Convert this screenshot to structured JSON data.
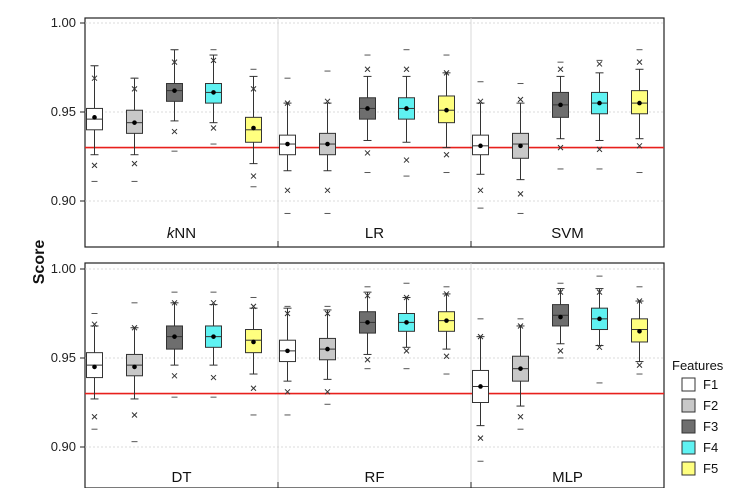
{
  "chart_data": {
    "type": "box",
    "ylabel": "Score",
    "ylim": [
      0.89,
      1.0
    ],
    "yticks": [
      "1.00",
      "0.95",
      "0.90"
    ],
    "reference_line": 0.93,
    "reference_color": "#e8201c",
    "features": [
      {
        "name": "F1",
        "color": "#ffffff"
      },
      {
        "name": "F2",
        "color": "#c8c8c8"
      },
      {
        "name": "F3",
        "color": "#6e6e6e"
      },
      {
        "name": "F4",
        "color": "#5ff2f2"
      },
      {
        "name": "F5",
        "color": "#ffff7f"
      }
    ],
    "legend": {
      "title": "Features",
      "position": "right"
    },
    "grid": true,
    "panels": [
      {
        "models": [
          {
            "name": "kNN",
            "label_italic_prefix": "k",
            "label_rest": "NN",
            "boxes": [
              {
                "feature": "F1",
                "q1": 0.94,
                "median": 0.946,
                "q3": 0.952,
                "mean": 0.947,
                "whisker_low": 0.926,
                "whisker_high": 0.976,
                "outliers": [
                  0.969,
                  0.92
                ],
                "extremes": [
                  0.976,
                  0.911
                ]
              },
              {
                "feature": "F2",
                "q1": 0.938,
                "median": 0.944,
                "q3": 0.951,
                "mean": 0.944,
                "whisker_low": 0.926,
                "whisker_high": 0.969,
                "outliers": [
                  0.963,
                  0.921
                ],
                "extremes": [
                  0.969,
                  0.911
                ]
              },
              {
                "feature": "F3",
                "q1": 0.956,
                "median": 0.962,
                "q3": 0.966,
                "mean": 0.962,
                "whisker_low": 0.945,
                "whisker_high": 0.985,
                "outliers": [
                  0.978,
                  0.939
                ],
                "extremes": [
                  0.985,
                  0.928
                ]
              },
              {
                "feature": "F4",
                "q1": 0.955,
                "median": 0.961,
                "q3": 0.966,
                "mean": 0.961,
                "whisker_low": 0.944,
                "whisker_high": 0.982,
                "outliers": [
                  0.979,
                  0.941
                ],
                "extremes": [
                  0.985,
                  0.932
                ]
              },
              {
                "feature": "F5",
                "q1": 0.933,
                "median": 0.94,
                "q3": 0.947,
                "mean": 0.941,
                "whisker_low": 0.921,
                "whisker_high": 0.97,
                "outliers": [
                  0.963,
                  0.914
                ],
                "extremes": [
                  0.974,
                  0.908
                ]
              }
            ]
          },
          {
            "name": "LR",
            "boxes": [
              {
                "feature": "F1",
                "q1": 0.926,
                "median": 0.932,
                "q3": 0.937,
                "mean": 0.932,
                "whisker_low": 0.917,
                "whisker_high": 0.955,
                "outliers": [
                  0.955,
                  0.906
                ],
                "extremes": [
                  0.969,
                  0.893
                ]
              },
              {
                "feature": "F2",
                "q1": 0.926,
                "median": 0.932,
                "q3": 0.938,
                "mean": 0.932,
                "whisker_low": 0.917,
                "whisker_high": 0.955,
                "outliers": [
                  0.956,
                  0.906
                ],
                "extremes": [
                  0.973,
                  0.893
                ]
              },
              {
                "feature": "F3",
                "q1": 0.946,
                "median": 0.952,
                "q3": 0.958,
                "mean": 0.952,
                "whisker_low": 0.934,
                "whisker_high": 0.97,
                "outliers": [
                  0.974,
                  0.927
                ],
                "extremes": [
                  0.982,
                  0.916
                ]
              },
              {
                "feature": "F4",
                "q1": 0.946,
                "median": 0.952,
                "q3": 0.958,
                "mean": 0.952,
                "whisker_low": 0.933,
                "whisker_high": 0.97,
                "outliers": [
                  0.974,
                  0.923
                ],
                "extremes": [
                  0.985,
                  0.914
                ]
              },
              {
                "feature": "F5",
                "q1": 0.944,
                "median": 0.951,
                "q3": 0.959,
                "mean": 0.951,
                "whisker_low": 0.93,
                "whisker_high": 0.972,
                "outliers": [
                  0.972,
                  0.926
                ],
                "extremes": [
                  0.982,
                  0.916
                ]
              }
            ]
          },
          {
            "name": "SVM",
            "boxes": [
              {
                "feature": "F1",
                "q1": 0.926,
                "median": 0.931,
                "q3": 0.937,
                "mean": 0.931,
                "whisker_low": 0.915,
                "whisker_high": 0.955,
                "outliers": [
                  0.956,
                  0.906
                ],
                "extremes": [
                  0.967,
                  0.896
                ]
              },
              {
                "feature": "F2",
                "q1": 0.924,
                "median": 0.932,
                "q3": 0.938,
                "mean": 0.931,
                "whisker_low": 0.912,
                "whisker_high": 0.955,
                "outliers": [
                  0.957,
                  0.904
                ],
                "extremes": [
                  0.966,
                  0.893
                ]
              },
              {
                "feature": "F3",
                "q1": 0.947,
                "median": 0.954,
                "q3": 0.961,
                "mean": 0.954,
                "whisker_low": 0.935,
                "whisker_high": 0.97,
                "outliers": [
                  0.974,
                  0.93
                ],
                "extremes": [
                  0.978,
                  0.918
                ]
              },
              {
                "feature": "F4",
                "q1": 0.949,
                "median": 0.955,
                "q3": 0.961,
                "mean": 0.955,
                "whisker_low": 0.934,
                "whisker_high": 0.972,
                "outliers": [
                  0.977,
                  0.929
                ],
                "extremes": [
                  0.979,
                  0.918
                ]
              },
              {
                "feature": "F5",
                "q1": 0.949,
                "median": 0.955,
                "q3": 0.962,
                "mean": 0.955,
                "whisker_low": 0.935,
                "whisker_high": 0.974,
                "outliers": [
                  0.978,
                  0.931
                ],
                "extremes": [
                  0.985,
                  0.916
                ]
              }
            ]
          }
        ]
      },
      {
        "models": [
          {
            "name": "DT",
            "boxes": [
              {
                "feature": "F1",
                "q1": 0.939,
                "median": 0.946,
                "q3": 0.953,
                "mean": 0.945,
                "whisker_low": 0.927,
                "whisker_high": 0.968,
                "outliers": [
                  0.969,
                  0.917
                ],
                "extremes": [
                  0.975,
                  0.91
                ]
              },
              {
                "feature": "F2",
                "q1": 0.94,
                "median": 0.946,
                "q3": 0.952,
                "mean": 0.945,
                "whisker_low": 0.927,
                "whisker_high": 0.967,
                "outliers": [
                  0.967,
                  0.918
                ],
                "extremes": [
                  0.981,
                  0.903
                ]
              },
              {
                "feature": "F3",
                "q1": 0.955,
                "median": 0.962,
                "q3": 0.968,
                "mean": 0.962,
                "whisker_low": 0.946,
                "whisker_high": 0.981,
                "outliers": [
                  0.981,
                  0.94
                ],
                "extremes": [
                  0.987,
                  0.928
                ]
              },
              {
                "feature": "F4",
                "q1": 0.956,
                "median": 0.962,
                "q3": 0.968,
                "mean": 0.962,
                "whisker_low": 0.946,
                "whisker_high": 0.98,
                "outliers": [
                  0.981,
                  0.939
                ],
                "extremes": [
                  0.987,
                  0.928
                ]
              },
              {
                "feature": "F5",
                "q1": 0.953,
                "median": 0.96,
                "q3": 0.966,
                "mean": 0.959,
                "whisker_low": 0.941,
                "whisker_high": 0.978,
                "outliers": [
                  0.979,
                  0.933
                ],
                "extremes": [
                  0.984,
                  0.918
                ]
              }
            ]
          },
          {
            "name": "RF",
            "boxes": [
              {
                "feature": "F1",
                "q1": 0.948,
                "median": 0.954,
                "q3": 0.96,
                "mean": 0.954,
                "whisker_low": 0.937,
                "whisker_high": 0.978,
                "outliers": [
                  0.975,
                  0.931
                ],
                "extremes": [
                  0.979,
                  0.918
                ]
              },
              {
                "feature": "F2",
                "q1": 0.949,
                "median": 0.955,
                "q3": 0.961,
                "mean": 0.955,
                "whisker_low": 0.938,
                "whisker_high": 0.977,
                "outliers": [
                  0.975,
                  0.931
                ],
                "extremes": [
                  0.979,
                  0.924
                ]
              },
              {
                "feature": "F3",
                "q1": 0.964,
                "median": 0.97,
                "q3": 0.976,
                "mean": 0.97,
                "whisker_low": 0.952,
                "whisker_high": 0.987,
                "outliers": [
                  0.985,
                  0.949
                ],
                "extremes": [
                  0.99,
                  0.944
                ]
              },
              {
                "feature": "F4",
                "q1": 0.965,
                "median": 0.97,
                "q3": 0.975,
                "mean": 0.97,
                "whisker_low": 0.956,
                "whisker_high": 0.984,
                "outliers": [
                  0.984,
                  0.954
                ],
                "extremes": [
                  0.992,
                  0.944
                ]
              },
              {
                "feature": "F5",
                "q1": 0.965,
                "median": 0.971,
                "q3": 0.976,
                "mean": 0.971,
                "whisker_low": 0.955,
                "whisker_high": 0.986,
                "outliers": [
                  0.986,
                  0.951
                ],
                "extremes": [
                  0.99,
                  0.941
                ]
              }
            ]
          },
          {
            "name": "MLP",
            "boxes": [
              {
                "feature": "F1",
                "q1": 0.925,
                "median": 0.934,
                "q3": 0.943,
                "mean": 0.934,
                "whisker_low": 0.912,
                "whisker_high": 0.962,
                "outliers": [
                  0.962,
                  0.905
                ],
                "extremes": [
                  0.972,
                  0.892
                ]
              },
              {
                "feature": "F2",
                "q1": 0.937,
                "median": 0.944,
                "q3": 0.951,
                "mean": 0.944,
                "whisker_low": 0.923,
                "whisker_high": 0.968,
                "outliers": [
                  0.968,
                  0.917
                ],
                "extremes": [
                  0.972,
                  0.91
                ]
              },
              {
                "feature": "F3",
                "q1": 0.968,
                "median": 0.974,
                "q3": 0.98,
                "mean": 0.973,
                "whisker_low": 0.958,
                "whisker_high": 0.989,
                "outliers": [
                  0.987,
                  0.954
                ],
                "extremes": [
                  0.992,
                  0.95
                ]
              },
              {
                "feature": "F4",
                "q1": 0.966,
                "median": 0.972,
                "q3": 0.978,
                "mean": 0.972,
                "whisker_low": 0.957,
                "whisker_high": 0.989,
                "outliers": [
                  0.987,
                  0.956
                ],
                "extremes": [
                  0.996,
                  0.936
                ]
              },
              {
                "feature": "F5",
                "q1": 0.959,
                "median": 0.966,
                "q3": 0.972,
                "mean": 0.965,
                "whisker_low": 0.948,
                "whisker_high": 0.982,
                "outliers": [
                  0.982,
                  0.946
                ],
                "extremes": [
                  0.99,
                  0.941
                ]
              }
            ]
          }
        ]
      }
    ]
  }
}
